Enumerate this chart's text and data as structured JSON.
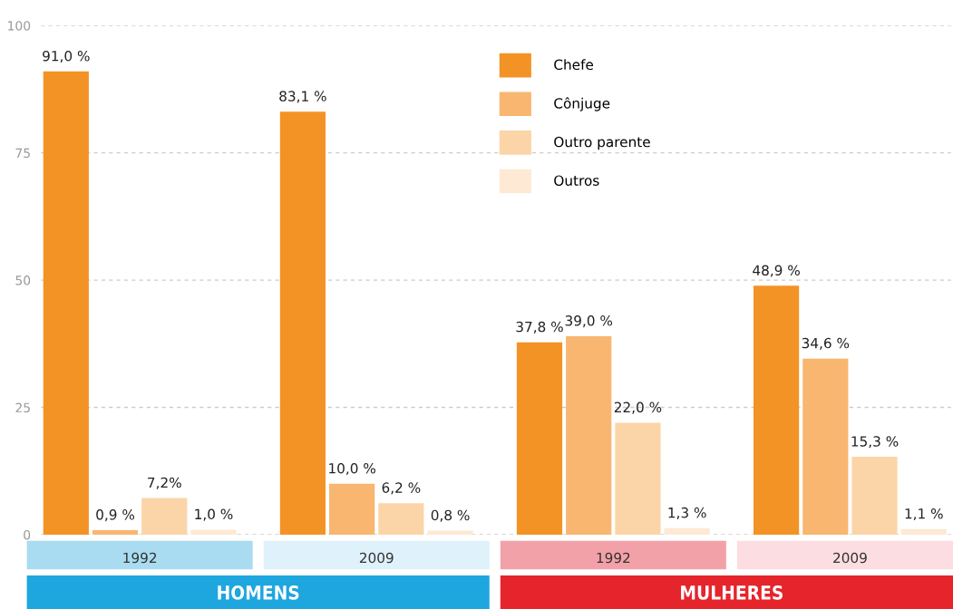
{
  "chart_data": {
    "type": "bar",
    "categories": [
      "1992",
      "2009",
      "1992",
      "2009"
    ],
    "series": [
      {
        "name": "Chefe",
        "color": "#f39325",
        "values": [
          91.0,
          83.1,
          37.8,
          48.9
        ],
        "value_labels": [
          "91,0 %",
          "83,1 %",
          "37,8 %",
          "48,9 %"
        ]
      },
      {
        "name": "Cônjuge",
        "color": "#f8b670",
        "values": [
          0.9,
          10.0,
          39.0,
          34.6
        ],
        "value_labels": [
          "0,9 %",
          "10,0 %",
          "39,0 %",
          "34,6 %"
        ]
      },
      {
        "name": "Outro parente",
        "color": "#fbd5a8",
        "values": [
          7.2,
          6.2,
          22.0,
          15.3
        ],
        "value_labels": [
          "7,2%",
          "6,2 %",
          "22,0 %",
          "15,3 %"
        ]
      },
      {
        "name": "Outros",
        "color": "#fde9d4",
        "values": [
          1.0,
          0.8,
          1.3,
          1.1
        ],
        "value_labels": [
          "1,0 %",
          "0,8 %",
          "1,3 %",
          "1,1 %"
        ]
      }
    ],
    "annotations": [
      "HOMENS",
      "MULHERES"
    ],
    "ylim": [
      0,
      100
    ],
    "yticks": [
      0,
      25,
      50,
      75,
      100
    ],
    "grid": "y",
    "legend": "top right"
  }
}
